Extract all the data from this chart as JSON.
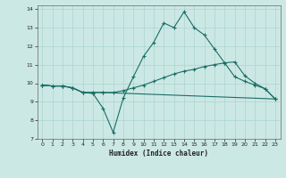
{
  "xlabel": "Humidex (Indice chaleur)",
  "background_color": "#cce8e4",
  "grid_color": "#aad4d0",
  "line_color": "#1a6e66",
  "xlim": [
    -0.5,
    23.5
  ],
  "ylim": [
    7,
    14.2
  ],
  "yticks": [
    7,
    8,
    9,
    10,
    11,
    12,
    13,
    14
  ],
  "xticks": [
    0,
    1,
    2,
    3,
    4,
    5,
    6,
    7,
    8,
    9,
    10,
    11,
    12,
    13,
    14,
    15,
    16,
    17,
    18,
    19,
    20,
    21,
    22,
    23
  ],
  "line1_x": [
    0,
    1,
    2,
    3,
    4,
    5,
    6,
    7,
    8,
    9,
    10,
    11,
    12,
    13,
    14,
    15,
    16,
    17,
    18,
    19,
    20,
    21,
    22,
    23
  ],
  "line1_y": [
    9.9,
    9.85,
    9.85,
    9.75,
    9.5,
    9.45,
    8.65,
    7.35,
    9.2,
    10.35,
    11.45,
    12.2,
    13.25,
    13.0,
    13.85,
    13.0,
    12.6,
    11.85,
    11.1,
    10.35,
    10.1,
    9.9,
    9.7,
    9.15
  ],
  "line2_x": [
    0,
    1,
    2,
    3,
    4,
    5,
    6,
    7,
    8,
    9,
    10,
    11,
    12,
    13,
    14,
    15,
    16,
    17,
    18,
    19,
    20,
    21,
    22,
    23
  ],
  "line2_y": [
    9.9,
    9.85,
    9.85,
    9.75,
    9.5,
    9.5,
    9.5,
    9.5,
    9.6,
    9.75,
    9.9,
    10.1,
    10.3,
    10.5,
    10.65,
    10.75,
    10.9,
    11.0,
    11.1,
    11.15,
    10.4,
    10.0,
    9.7,
    9.15
  ],
  "line3_x": [
    0,
    1,
    2,
    3,
    4,
    5,
    6,
    23
  ],
  "line3_y": [
    9.9,
    9.85,
    9.85,
    9.75,
    9.5,
    9.5,
    9.5,
    9.15
  ]
}
